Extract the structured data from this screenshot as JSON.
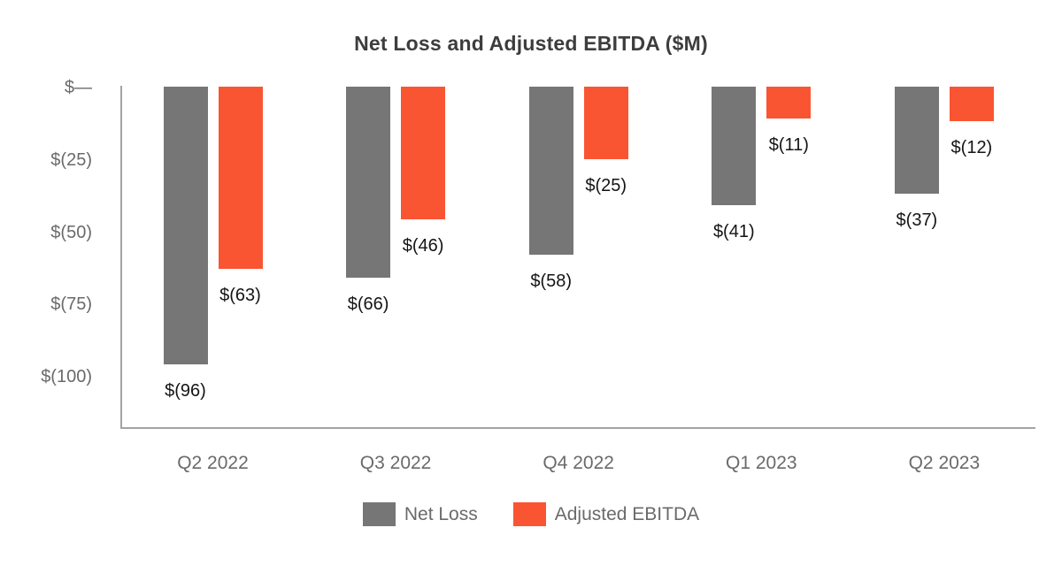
{
  "title": "Net Loss and Adjusted EBITDA ($M)",
  "colors": {
    "net_loss": "#767676",
    "adjusted_ebitda": "#FA5532",
    "axis_line": "#A3A3A3",
    "tick_text": "#6A6A6A",
    "value_label_text": "#141414",
    "title_text": "#3D3D3D"
  },
  "chart_data": {
    "type": "bar",
    "title": "Net Loss and Adjusted EBITDA ($M)",
    "categories": [
      "Q2 2022",
      "Q3 2022",
      "Q4 2022",
      "Q1 2023",
      "Q2 2023"
    ],
    "series": [
      {
        "name": "Net Loss",
        "color": "#767676",
        "values": [
          -96,
          -66,
          -58,
          -41,
          -37
        ],
        "labels": [
          "$(96)",
          "$(66)",
          "$(58)",
          "$(41)",
          "$(37)"
        ]
      },
      {
        "name": "Adjusted EBITDA",
        "color": "#FA5532",
        "values": [
          -63,
          -46,
          -25,
          -11,
          -12
        ],
        "labels": [
          "$(63)",
          "$(46)",
          "$(25)",
          "$(11)",
          "$(12)"
        ]
      }
    ],
    "xlabel": "",
    "ylabel": "",
    "ylim": [
      -119,
      0
    ],
    "yticks": [
      {
        "value": 0,
        "label": "$—"
      },
      {
        "value": -25,
        "label": "$(25)"
      },
      {
        "value": -50,
        "label": "$(50)"
      },
      {
        "value": -75,
        "label": "$(75)"
      },
      {
        "value": -100,
        "label": "$(100)"
      }
    ],
    "grid": false,
    "legend_position": "bottom",
    "legend": [
      {
        "label": "Net Loss",
        "color": "#767676"
      },
      {
        "label": "Adjusted EBITDA",
        "color": "#FA5532"
      }
    ]
  }
}
